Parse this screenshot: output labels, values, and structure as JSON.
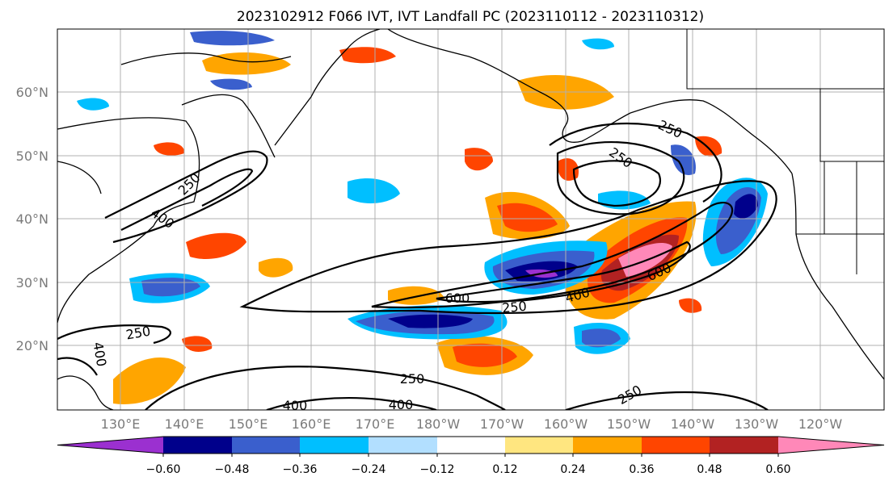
{
  "title": "2023102912 F066 IVT, IVT Landfall PC (2023110112 - 2023110312)",
  "lat_labels": [
    "60°N",
    "50°N",
    "40°N",
    "30°N",
    "20°N"
  ],
  "lon_labels": [
    "130°E",
    "140°E",
    "150°E",
    "160°E",
    "170°E",
    "180°W",
    "170°W",
    "160°W",
    "150°W",
    "140°W",
    "130°W",
    "120°W"
  ],
  "colorbar": {
    "colors": [
      "#9b30d0",
      "#00008b",
      "#3a5fcd",
      "#00bfff",
      "#b2dfff",
      "#ffffff",
      "#ffe680",
      "#ffa500",
      "#ff4500",
      "#b22222",
      "#ff88b8"
    ],
    "tick_labels": [
      "−0.60",
      "−0.48",
      "−0.36",
      "−0.24",
      "−0.12",
      "0.12",
      "0.24",
      "0.36",
      "0.48",
      "0.60"
    ]
  },
  "contour_labels": [
    "250",
    "250",
    "250",
    "400",
    "250",
    "400",
    "600",
    "250",
    "400",
    "600",
    "250",
    "400",
    "250",
    "400",
    "250"
  ]
}
